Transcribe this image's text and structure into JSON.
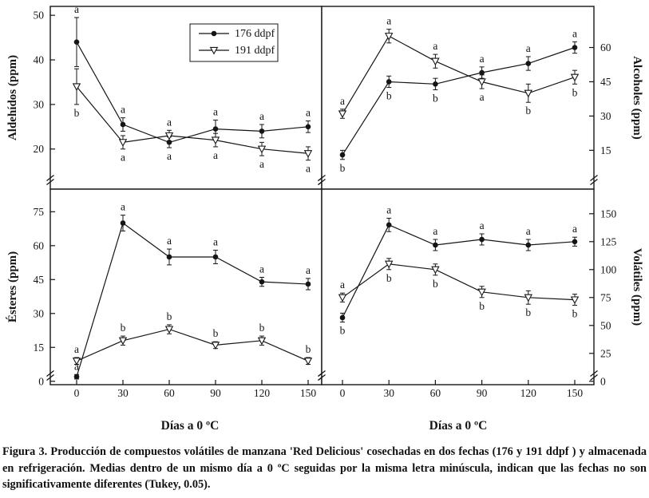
{
  "figure": {
    "ink_color": "#151515",
    "x_axis_title": "Días a 0 ºC",
    "caption": "Figura 3. Producción de compuestos volátiles de manzana 'Red Delicious' cosechadas en dos fechas (176 y 191 ddpf ) y almacenada en refrigeración. Medias dentro de un mismo día a 0 ºC seguidas por la misma letra minúscula, indican que las fechas no son significativamente diferentes (Tukey, 0.05)."
  },
  "chart_data": [
    {
      "type": "line",
      "panel": "top-left",
      "ylabel": "Aldehídos (ppm)",
      "y_axis_side": "left",
      "ylim": [
        11,
        52
      ],
      "yticks": [
        20,
        30,
        40,
        50
      ],
      "xlim": [
        0,
        150
      ],
      "x": [
        0,
        30,
        60,
        90,
        120,
        150
      ],
      "show_x_tick_labels": false,
      "legend": true,
      "axis_break": true,
      "series": [
        {
          "name": "176 ddpf",
          "marker": "filled-circle",
          "values": [
            44,
            25.5,
            21.5,
            24.5,
            24,
            25
          ],
          "errors": [
            5.5,
            1.5,
            1.2,
            2,
            1.5,
            1.3
          ],
          "letters": [
            "a",
            "a",
            "a",
            "a",
            "a",
            "a"
          ],
          "letter_positions": [
            "above",
            "above",
            "below",
            "above",
            "above",
            "above"
          ]
        },
        {
          "name": "191 ddpf",
          "marker": "open-triangle-down",
          "values": [
            34,
            21.5,
            23,
            22,
            20,
            19
          ],
          "errors": [
            4,
            1.5,
            1.2,
            1.5,
            1.5,
            1.5
          ],
          "letters": [
            "b",
            "a",
            "a",
            "a",
            "a",
            "a"
          ],
          "letter_positions": [
            "below",
            "below",
            "above",
            "below",
            "below",
            "below"
          ]
        }
      ]
    },
    {
      "type": "line",
      "panel": "top-right",
      "ylabel": "Alcoholes (ppm)",
      "y_axis_side": "right",
      "ylim": [
        -2,
        78
      ],
      "yticks": [
        15,
        30,
        45,
        60
      ],
      "xlim": [
        0,
        150
      ],
      "x": [
        0,
        30,
        60,
        90,
        120,
        150
      ],
      "show_x_tick_labels": false,
      "legend": false,
      "axis_break": true,
      "series": [
        {
          "name": "176 ddpf",
          "marker": "filled-circle",
          "values": [
            13,
            45,
            44,
            49,
            53,
            60
          ],
          "errors": [
            2,
            2.5,
            2.5,
            2.5,
            3,
            2.5
          ],
          "letters": [
            "b",
            "b",
            "b",
            "a",
            "a",
            "a"
          ],
          "letter_positions": [
            "below",
            "below",
            "below",
            "above",
            "above",
            "above"
          ]
        },
        {
          "name": "191 ddpf",
          "marker": "open-triangle-down",
          "values": [
            31,
            65,
            54,
            45,
            40,
            47
          ],
          "errors": [
            2,
            3,
            3,
            3,
            4,
            3
          ],
          "letters": [
            "a",
            "a",
            "a",
            "a",
            "b",
            "b"
          ],
          "letter_positions": [
            "above",
            "above",
            "above",
            "below",
            "below",
            "below"
          ]
        }
      ]
    },
    {
      "type": "line",
      "panel": "bottom-left",
      "ylabel": "Ésteres (ppm)",
      "y_axis_side": "left",
      "ylim": [
        -1.5,
        85
      ],
      "yticks": [
        0,
        15,
        30,
        45,
        60,
        75
      ],
      "xlim": [
        0,
        150
      ],
      "x": [
        0,
        30,
        60,
        90,
        120,
        150
      ],
      "show_x_tick_labels": true,
      "legend": false,
      "axis_break": true,
      "series": [
        {
          "name": "176 ddpf",
          "marker": "filled-circle",
          "values": [
            2,
            70,
            55,
            55,
            44,
            43
          ],
          "errors": [
            1,
            3.5,
            3.5,
            3,
            2,
            2.5
          ],
          "letters": [
            "a",
            "a",
            "a",
            "a",
            "a",
            "a"
          ],
          "letter_positions": [
            "above",
            "above",
            "above",
            "above",
            "above",
            "above"
          ]
        },
        {
          "name": "191 ddpf",
          "marker": "open-triangle-down",
          "values": [
            9,
            18,
            23,
            16,
            18,
            9
          ],
          "errors": [
            1.5,
            2,
            2,
            1.5,
            2,
            1.5
          ],
          "letters": [
            "a",
            "b",
            "b",
            "b",
            "b",
            "b"
          ],
          "letter_positions": [
            "above",
            "above",
            "above",
            "above",
            "above",
            "above"
          ]
        }
      ]
    },
    {
      "type": "line",
      "panel": "bottom-right",
      "ylabel": "Volátiles (ppm)",
      "y_axis_side": "right",
      "ylim": [
        -3,
        172
      ],
      "yticks": [
        0,
        25,
        50,
        75,
        100,
        125,
        150
      ],
      "xlim": [
        0,
        150
      ],
      "x": [
        0,
        30,
        60,
        90,
        120,
        150
      ],
      "show_x_tick_labels": true,
      "legend": false,
      "axis_break": true,
      "series": [
        {
          "name": "176 ddpf",
          "marker": "filled-circle",
          "values": [
            57,
            140,
            122,
            127,
            122,
            125
          ],
          "errors": [
            4,
            6,
            5,
            5,
            5,
            4
          ],
          "letters": [
            "b",
            "a",
            "a",
            "a",
            "a",
            "a"
          ],
          "letter_positions": [
            "below",
            "above",
            "above",
            "above",
            "above",
            "above"
          ]
        },
        {
          "name": "191 ddpf",
          "marker": "open-triangle-down",
          "values": [
            75,
            105,
            100,
            80,
            75,
            73
          ],
          "errors": [
            4,
            5,
            5,
            5,
            6,
            5
          ],
          "letters": [
            "a",
            "b",
            "b",
            "b",
            "b",
            "b"
          ],
          "letter_positions": [
            "above",
            "below",
            "below",
            "below",
            "below",
            "below"
          ]
        }
      ]
    }
  ]
}
